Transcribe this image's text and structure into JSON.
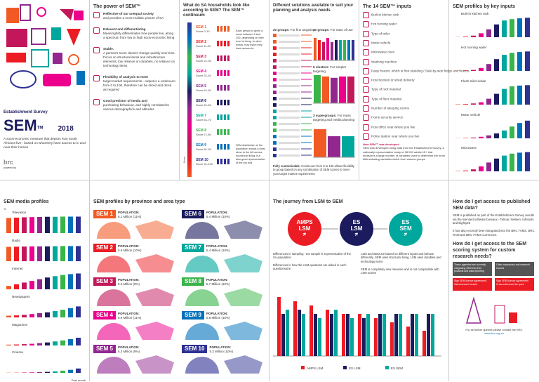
{
  "colors": {
    "sem1": "#f15a24",
    "sem2": "#ec1c24",
    "sem3": "#c2185b",
    "sem4": "#ec008c",
    "sem5": "#92278f",
    "sem6": "#1b1b5e",
    "sem7": "#00a79d",
    "sem8": "#39b54a",
    "sem9": "#0072bc",
    "sem10": "#2e3192"
  },
  "cover": {
    "subtitle": "Establishment Survey",
    "title": "SEM",
    "tm": "TM",
    "year": "2018",
    "desc": "A socio-economic measure that depicts how South Africans live - based on what they have access to in and near their homes",
    "brc": "brc",
    "brc_sub": "powered by"
  },
  "power": {
    "title": "The power of SEM™",
    "items": [
      {
        "head": "Reflective of our unequal society",
        "body": "and provides a more realistic picture of SA"
      },
      {
        "head": "Relevant and differentiating",
        "body": "Meaningfully differentiates how people live, along a spectrum from low to high socio-economic living"
      },
      {
        "head": "Stable.",
        "body": "A person's score doesn't change quickly over time. Focus on structural items and infrastructure elements, low reliance on durables, no reliance on technology items"
      },
      {
        "head": "Flexibility of analysis to meet",
        "body": "target market requirements - output is a continuum from 0 to 100, therefore can be sliced and diced as required"
      },
      {
        "head": "Good predictor of media and",
        "body": "purchasing behaviour, and highly correlated to various demographics and attitudes"
      }
    ]
  },
  "continuum": {
    "title": "What do SA households look like according to SEM? The SEM™ continuum",
    "side_label": "Score",
    "note1": "Each person is given a score between 0 and 100, depending on their level of living. In other words, how much they have access to.",
    "note2": "SEM distribution of the population shows a clear skew to the left across household living, but also good representation of the top end",
    "levels": [
      {
        "sem": "SEM 1",
        "score": "Score 0-10"
      },
      {
        "sem": "SEM 2",
        "score": "Score 11-20"
      },
      {
        "sem": "SEM 3",
        "score": "Score 21-30"
      },
      {
        "sem": "SEM 4",
        "score": "Score 31-40"
      },
      {
        "sem": "SEM 5",
        "score": "Score 41-50"
      },
      {
        "sem": "SEM 6",
        "score": "Score 51-60"
      },
      {
        "sem": "SEM 7",
        "score": "Score 61-70"
      },
      {
        "sem": "SEM 8",
        "score": "Score 71-80"
      },
      {
        "sem": "SEM 9",
        "score": "Score 81-90"
      },
      {
        "sem": "SEM 10",
        "score": "Score 91-100"
      }
    ]
  },
  "solutions": {
    "title": "Different solutions available to suit your planning and analysis needs",
    "g20": "20 groups:",
    "g20s": "For fine targeting",
    "g10": "10 groups:",
    "g10s": "For ease of use",
    "g5": "5 clusters:",
    "g5s": "For simpler targeting",
    "g3": "3 supergroups:",
    "g3s": "For mass targeting and media planning",
    "fully": "Fully customisable:",
    "fully_body": "Continuum from 0 to 100 allows flexibility to group based on any combination of SEM scores to meet your target market requirements"
  },
  "inputs": {
    "title": "The 14 SEM™ inputs",
    "items": [
      "Built-in kitchen sink",
      "Hot running water",
      "Type of toilet",
      "Motor vehicle",
      "Microwave oven",
      "Washing machine",
      "Deep freezer, which is free standing / Side-by-side fridge and freezer",
      "Post box/slot or street delivery",
      "Type of roof material",
      "Type of floor material",
      "Number of sleeping rooms",
      "Home security service",
      "Post office near where you live",
      "Police station near where you live"
    ],
    "foot_head": "How SEM™ was developed",
    "foot": "SEM was developed using data from the Establishment Survey, a nationally representative study of 28 000 adults 15+ that measures a large number of variables used to determine the most differentiating variables which form various groups"
  },
  "profiles": {
    "title": "SEM profiles by key inputs",
    "items": [
      "Built-in kitchen sink",
      "Hot running water",
      "Flush toilet inside",
      "Motor vehicle",
      "Microwave"
    ]
  },
  "media": {
    "title": "SEM media profiles",
    "pct": "%",
    "items": [
      "Television",
      "Radio",
      "Internet",
      "Newspapers",
      "Magazines",
      "Cinema"
    ],
    "past_month": "Past month"
  },
  "province": {
    "title": "SEM profiles by province and area type",
    "pop_label": "POPULATION:",
    "left": [
      {
        "sem": "SEM 1",
        "pop": "6.1 Million (11%)"
      },
      {
        "sem": "SEM 2",
        "pop": "5.6 Million (10%)"
      },
      {
        "sem": "SEM 3",
        "pop": "5.2 Million (9%)"
      },
      {
        "sem": "SEM 4",
        "pop": "5.9 Million (11%)"
      },
      {
        "sem": "SEM 5",
        "pop": "5.2 Million (9%)"
      }
    ],
    "right": [
      {
        "sem": "SEM 6",
        "pop": "5.4 Million (10%)"
      },
      {
        "sem": "SEM 7",
        "pop": "5.4 Million (10%)"
      },
      {
        "sem": "SEM 8",
        "pop": "5.7 Million (10%)"
      },
      {
        "sem": "SEM 9",
        "pop": "5.8 Million (10%)"
      },
      {
        "sem": "SEM 10",
        "pop": "5.3 Million (10%)"
      }
    ]
  },
  "journey": {
    "title": "The journey from LSM to SEM",
    "b1": "AMPS LSM",
    "b2": "ES LSM",
    "b3": "ES SEM",
    "neq": "≠",
    "t1": "Differences in sampling - ES sample is representative of the SA population",
    "t2": "Differences in how the LSM questions are asked in each questionnaire",
    "t3": "LSM and SEM are based on different inputs and behave differently. SEM uses structural living, LSM uses durables and technology items",
    "t4": "SEM is completely new measure and is not comparable with LSM scores",
    "leg1": "AMPS LSM",
    "leg2": "ES LSM",
    "leg3": "ES SEM"
  },
  "access": {
    "title1": "How do I get access to published SEM data?",
    "body1": "SEM is published as part of the Establishment Survey results via the licensed software bureaux - Telmar, Nielsen, Infotools and Eighty20",
    "body1b": "It has also recently been integrated into the BRC TAMS, BRC RAM and BRC FAMS currencies.",
    "title2": "How do I get access to the SEM scoring system for custom research needs?",
    "box1": "These agencies are currently integrating SEM into their products and data reporting",
    "box2": "Other companies and research houses",
    "box3": "Sign SEM licence agreement / Use/research houses",
    "box4": "Sign SEM licence agreement / Cross-reference the ques",
    "foot": "For all further queries please contact the BRC",
    "url": "www.brc.org.za"
  }
}
